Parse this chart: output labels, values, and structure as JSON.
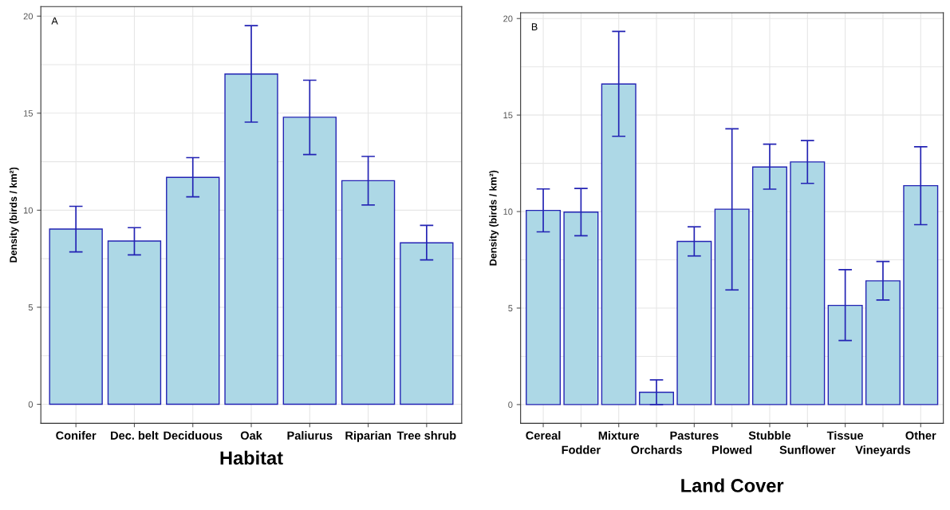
{
  "chart_data": [
    {
      "type": "bar",
      "annotations": [
        "A"
      ],
      "xlabel": "Habitat",
      "ylabel": "Density (birds / km²)",
      "categories": [
        "Conifer",
        "Dec. belt",
        "Deciduous",
        "Oak",
        "Paliurus",
        "Riparian",
        "Tree shrub"
      ],
      "color": "#add8e6",
      "values": [
        9.03,
        8.41,
        11.69,
        17.02,
        14.79,
        11.52,
        8.32
      ],
      "errors": [
        [
          7.85,
          10.2
        ],
        [
          7.7,
          9.1
        ],
        [
          10.69,
          12.71
        ],
        [
          14.54,
          19.51
        ],
        [
          12.87,
          16.7
        ],
        [
          10.27,
          12.77
        ],
        [
          7.44,
          9.22
        ]
      ],
      "ylim": [
        -0.98,
        20.49
      ],
      "yticks": [
        0,
        5,
        10,
        15,
        20
      ],
      "grid": true,
      "legend": false
    },
    {
      "type": "bar",
      "annotations": [
        "B"
      ],
      "xlabel": "Land Cover",
      "ylabel": "Density (birds / km²)",
      "categories": [
        "Cereal",
        "Fodder",
        "Mixture",
        "Orchards",
        "Pastures",
        "Plowed",
        "Stubble",
        "Sunflower",
        "Tissue",
        "Vineyards",
        "Other"
      ],
      "color": "#add8e6",
      "values": [
        10.06,
        9.97,
        16.61,
        0.64,
        8.45,
        10.12,
        12.31,
        12.57,
        5.14,
        6.41,
        11.34
      ],
      "errors": [
        [
          8.95,
          11.17
        ],
        [
          8.75,
          11.2
        ],
        [
          13.9,
          19.33
        ],
        [
          0.0,
          1.28
        ],
        [
          7.7,
          9.21
        ],
        [
          5.94,
          14.29
        ],
        [
          11.16,
          13.49
        ],
        [
          11.46,
          13.68
        ],
        [
          3.32,
          6.99
        ],
        [
          5.42,
          7.41
        ],
        [
          9.32,
          13.36
        ]
      ],
      "ylim": [
        -0.97,
        20.3
      ],
      "yticks": [
        0,
        5,
        10,
        15,
        20
      ],
      "grid": true,
      "legend": false
    }
  ]
}
